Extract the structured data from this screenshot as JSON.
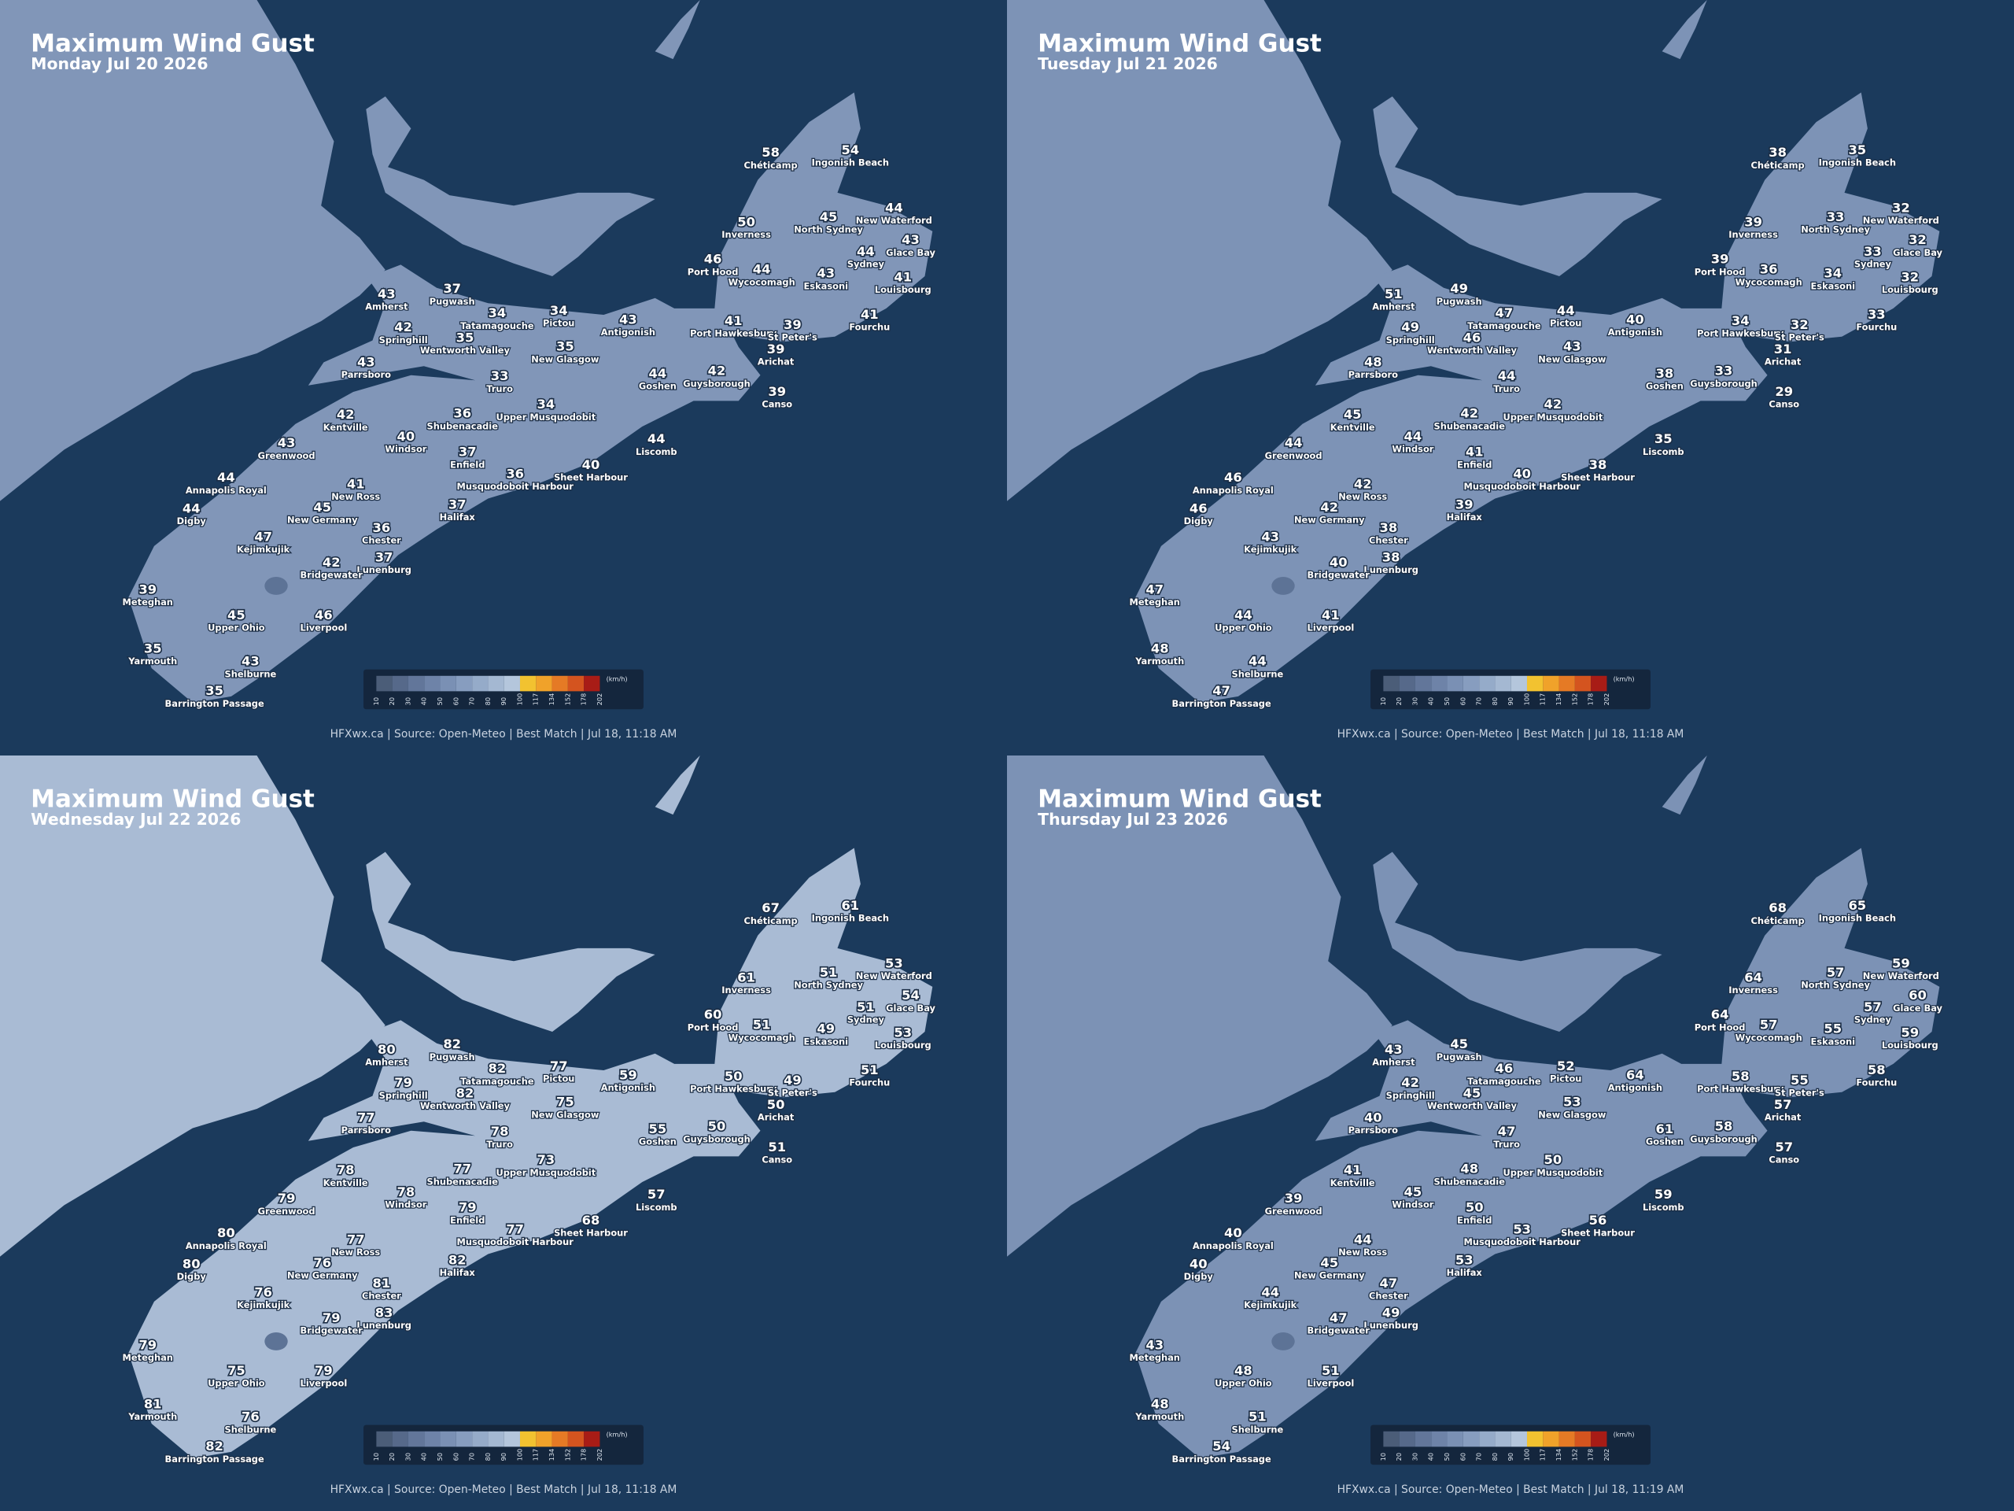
{
  "stations": [
    "Chéticamp",
    "Ingonish Beach",
    "Inverness",
    "North Sydney",
    "New Waterford",
    "Glace Bay",
    "Sydney",
    "Port Hood",
    "Wycocomagh",
    "Eskasoni",
    "Louisbourg",
    "Amherst",
    "Pugwash",
    "Tatamagouche",
    "Pictou",
    "Antigonish",
    "Springhill",
    "Wentworth Valley",
    "New Glasgow",
    "Port Hawkesbury",
    "St Peter's",
    "Fourchu",
    "Arichat",
    "Parrsboro",
    "Truro",
    "Goshen",
    "Guysborough",
    "Canso",
    "Kentville",
    "Shubenacadie",
    "Upper Musquodobit",
    "Liscomb",
    "Greenwood",
    "Windsor",
    "Enfield",
    "Annapolis Royal",
    "New Ross",
    "Musquodoboit Harbour",
    "Sheet Harbour",
    "Digby",
    "New Germany",
    "Halifax",
    "Kejimkujik",
    "Chester",
    "Lunenburg",
    "Bridgewater",
    "Meteghan",
    "Upper Ohio",
    "Liverpool",
    "Yarmouth",
    "Shelburne",
    "Barrington Passage"
  ],
  "legend": {
    "unit": "(km/h)",
    "ticks": [
      10,
      20,
      30,
      40,
      50,
      60,
      70,
      80,
      90,
      100,
      117,
      134,
      152,
      178,
      202
    ],
    "colors": [
      "#4b5d78",
      "#56698a",
      "#62769a",
      "#6e83a8",
      "#7a90b4",
      "#879dbf",
      "#95abc9",
      "#a4b8d2",
      "#b4c6dc",
      "#f2c230",
      "#f0a22a",
      "#e57a25",
      "#d4541f",
      "#a81c16"
    ]
  },
  "panels": [
    {
      "title": "Maximum Wind Gust",
      "date": "Monday Jul 20 2026",
      "footer": "HFXwx.ca | Source: Open-Meteo | Best Match | Jul 18, 11:18 AM",
      "values": [
        58,
        54,
        50,
        45,
        44,
        43,
        44,
        46,
        44,
        43,
        41,
        43,
        37,
        34,
        34,
        43,
        42,
        35,
        35,
        41,
        39,
        41,
        39,
        43,
        33,
        44,
        42,
        39,
        42,
        36,
        34,
        44,
        43,
        40,
        37,
        44,
        41,
        36,
        40,
        44,
        45,
        37,
        47,
        36,
        37,
        42,
        39,
        45,
        46,
        35,
        43,
        35
      ]
    },
    {
      "title": "Maximum Wind Gust",
      "date": "Tuesday Jul 21 2026",
      "footer": "HFXwx.ca | Source: Open-Meteo | Best Match | Jul 18, 11:18 AM",
      "values": [
        38,
        35,
        39,
        33,
        32,
        32,
        33,
        39,
        36,
        34,
        32,
        51,
        49,
        47,
        44,
        40,
        49,
        46,
        43,
        34,
        32,
        33,
        31,
        48,
        44,
        38,
        33,
        29,
        45,
        42,
        42,
        35,
        44,
        44,
        41,
        46,
        42,
        40,
        38,
        46,
        42,
        39,
        43,
        38,
        38,
        40,
        47,
        44,
        41,
        48,
        44,
        47
      ]
    },
    {
      "title": "Maximum Wind Gust",
      "date": "Wednesday Jul 22 2026",
      "footer": "HFXwx.ca | Source: Open-Meteo | Best Match | Jul 18, 11:18 AM",
      "values": [
        67,
        61,
        61,
        51,
        53,
        54,
        51,
        60,
        51,
        49,
        53,
        80,
        82,
        82,
        77,
        59,
        79,
        82,
        75,
        50,
        49,
        51,
        50,
        77,
        78,
        55,
        50,
        51,
        78,
        77,
        73,
        57,
        79,
        78,
        79,
        80,
        77,
        77,
        68,
        80,
        76,
        82,
        76,
        81,
        83,
        79,
        79,
        75,
        79,
        81,
        76,
        82
      ]
    },
    {
      "title": "Maximum Wind Gust",
      "date": "Thursday Jul 23 2026",
      "footer": "HFXwx.ca | Source: Open-Meteo | Best Match | Jul 18, 11:19 AM",
      "values": [
        68,
        65,
        64,
        57,
        59,
        60,
        57,
        64,
        57,
        55,
        59,
        43,
        45,
        46,
        52,
        64,
        42,
        45,
        53,
        58,
        55,
        58,
        57,
        40,
        47,
        61,
        58,
        57,
        41,
        48,
        50,
        59,
        39,
        45,
        50,
        40,
        44,
        53,
        56,
        40,
        45,
        53,
        44,
        47,
        49,
        47,
        43,
        48,
        51,
        48,
        51,
        54
      ]
    }
  ]
}
